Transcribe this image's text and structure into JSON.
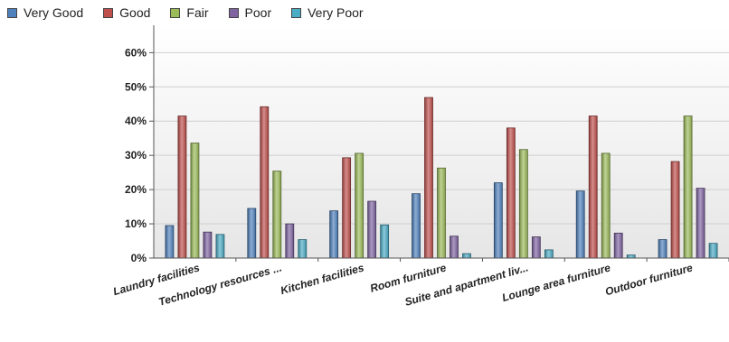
{
  "chart_data": {
    "type": "bar",
    "categories": [
      "Laundry facilities",
      "Technology resources ...",
      "Kitchen facilities",
      "Room furniture",
      "Suite and apartment liv...",
      "Lounge area furniture",
      "Outdoor furniture"
    ],
    "series": [
      {
        "name": "Very Good",
        "color": "#4f81bd",
        "values": [
          9.5,
          14.5,
          13.8,
          18.8,
          22.0,
          19.6,
          5.4
        ]
      },
      {
        "name": "Good",
        "color": "#c0504d",
        "values": [
          41.5,
          44.2,
          29.3,
          46.9,
          38.0,
          41.5,
          28.2
        ]
      },
      {
        "name": "Fair",
        "color": "#9bbb59",
        "values": [
          33.6,
          25.4,
          30.6,
          26.3,
          31.7,
          30.6,
          41.5
        ]
      },
      {
        "name": "Poor",
        "color": "#8064a2",
        "values": [
          7.6,
          10.0,
          16.6,
          6.4,
          6.2,
          7.3,
          20.4
        ]
      },
      {
        "name": "Very Poor",
        "color": "#4bacc6",
        "values": [
          6.9,
          5.4,
          9.7,
          1.3,
          2.4,
          0.9,
          4.3
        ]
      }
    ],
    "yticks": [
      "0%",
      "10%",
      "20%",
      "30%",
      "40%",
      "50%",
      "60%"
    ],
    "ylim": [
      0,
      68
    ],
    "grid": true,
    "legend_position": "top-left"
  }
}
